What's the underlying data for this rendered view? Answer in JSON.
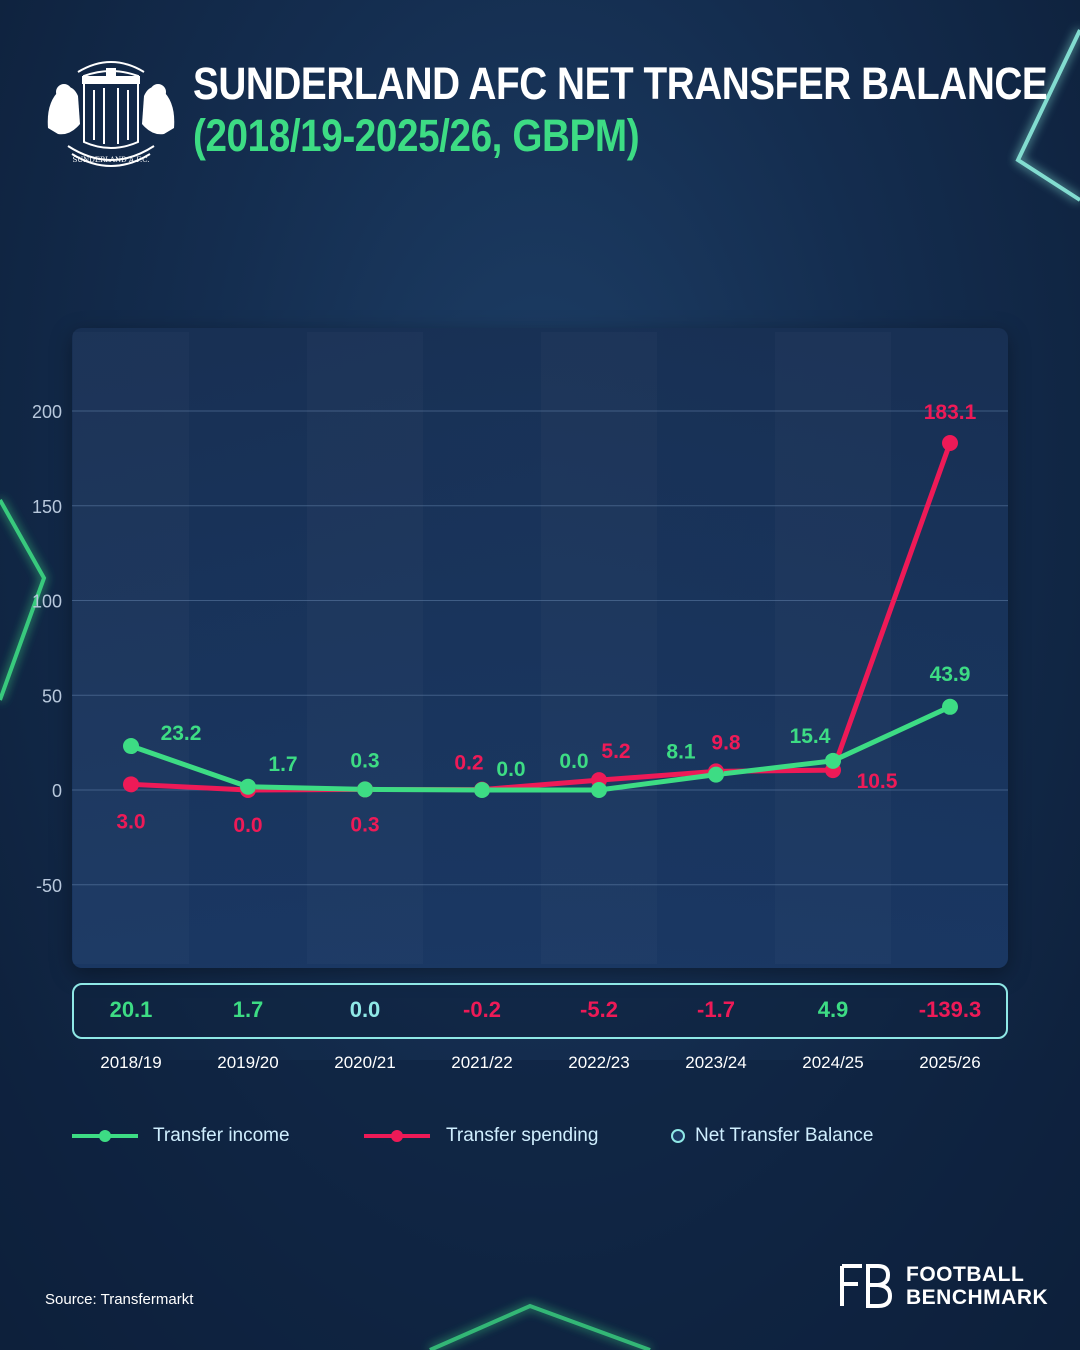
{
  "header": {
    "title_line1": "SUNDERLAND AFC NET TRANSFER BALANCE",
    "title_line2": "(2018/19-2025/26, GBPM)",
    "crest_text": "SUNDERLAND A.F.C."
  },
  "colors": {
    "income": "#3ddc84",
    "spending": "#ee1a57",
    "net_outline": "#8fe8e6",
    "background": "#142d4f"
  },
  "chart_data": {
    "type": "line",
    "categories": [
      "2018/19",
      "2019/20",
      "2020/21",
      "2021/22",
      "2022/23",
      "2023/24",
      "2024/25",
      "2025/26"
    ],
    "series": [
      {
        "name": "Transfer income",
        "values": [
          23.2,
          1.7,
          0.3,
          0.0,
          0.0,
          8.1,
          15.4,
          43.9
        ],
        "labels": [
          "23.2",
          "1.7",
          "0.3",
          "0.0",
          "0.0",
          "8.1",
          "15.4",
          "43.9"
        ]
      },
      {
        "name": "Transfer spending",
        "values": [
          3.0,
          0.0,
          0.3,
          0.2,
          5.2,
          9.8,
          10.5,
          183.1
        ],
        "labels": [
          "3.0",
          "0.0",
          "0.3",
          "0.2",
          "5.2",
          "9.8",
          "10.5",
          "183.1"
        ]
      }
    ],
    "net_balance": {
      "name": "Net Transfer Balance",
      "values": [
        20.1,
        1.7,
        0.0,
        -0.2,
        -5.2,
        -1.7,
        4.9,
        -139.3
      ],
      "labels": [
        "20.1",
        "1.7",
        "0.0",
        "-0.2",
        "-5.2",
        "-1.7",
        "4.9",
        "-139.3"
      ]
    },
    "y_ticks": [
      200,
      150,
      100,
      50,
      0,
      -50
    ],
    "y_tick_labels": [
      "200",
      "150",
      "100",
      "50",
      "0",
      "-50"
    ],
    "ylim": [
      -100,
      200
    ],
    "grid": true,
    "legend_position": "bottom"
  },
  "legend": {
    "income_label": "Transfer income",
    "spending_label": "Transfer spending",
    "net_label": "Net Transfer Balance"
  },
  "footer": {
    "source": "Source: Transfermarkt",
    "brand_line1": "FOOTBALL",
    "brand_line2": "BENCHMARK"
  }
}
